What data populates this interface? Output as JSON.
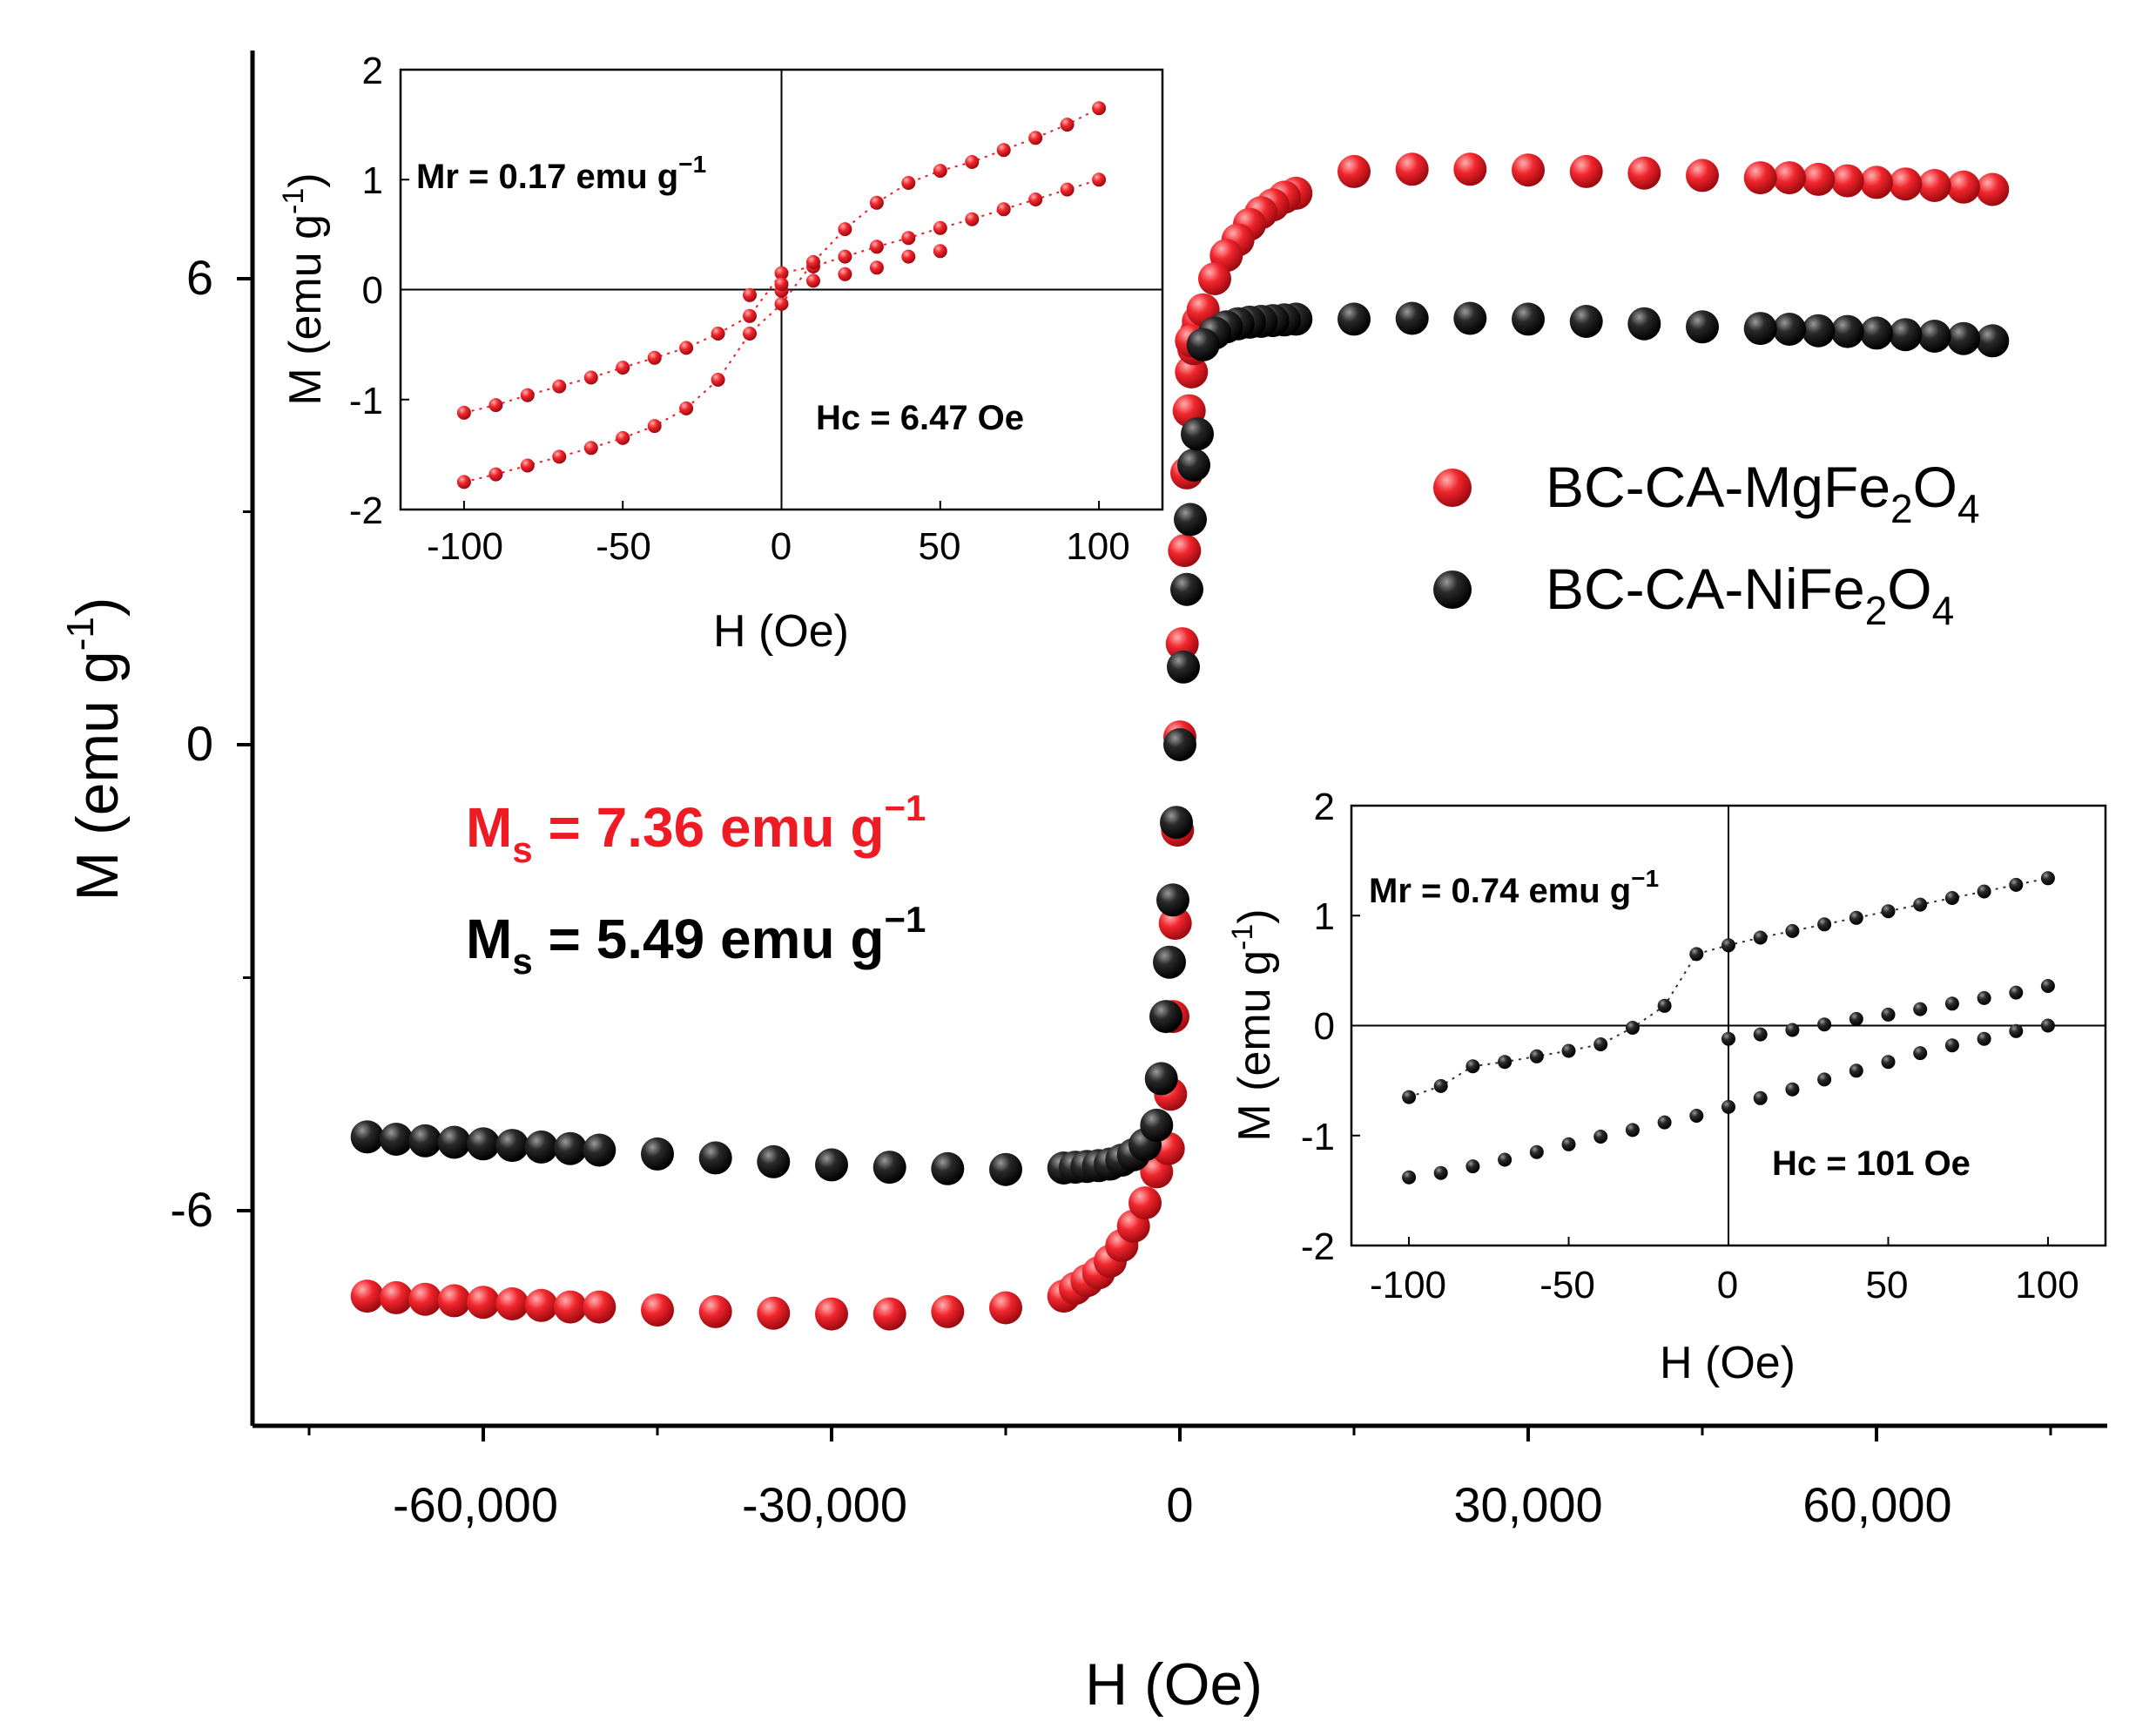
{
  "chart_data": [
    {
      "id": "main",
      "type": "scatter",
      "xlabel": "H (Oe)",
      "ylabel": "M (emu g⁻¹)",
      "ylabel_main": "M (emu g",
      "ylabel_sup": "-1",
      "ylabel_close": ")",
      "xlim": [
        -80000,
        80000
      ],
      "ylim": [
        -8.8,
        9.4
      ],
      "x_ticks": [
        -60000,
        -30000,
        0,
        30000,
        60000
      ],
      "x_tick_labels": [
        "-60,000",
        "-30,000",
        "0",
        "30,000",
        "60,000"
      ],
      "y_ticks": [
        -6,
        0,
        6
      ],
      "y_tick_labels": [
        "-6",
        "0",
        "6"
      ],
      "annotations": [
        {
          "prefix": "M",
          "sub": "s",
          "text": " = 7.36 emu g",
          "sup": "−1",
          "color": "#ee1b24"
        },
        {
          "prefix": "M",
          "sub": "s",
          "text": " = 5.49 emu g",
          "sup": "−1",
          "color": "#000000"
        }
      ],
      "legend": {
        "placement": "right",
        "entries": [
          {
            "name": "BC-CA-MgFe",
            "sub1": "2",
            "mid": "O",
            "sub2": "4",
            "color": "#ee1b24"
          },
          {
            "name": "BC-CA-NiFe",
            "sub1": "2",
            "mid": "O",
            "sub2": "4",
            "color": "#111111"
          }
        ]
      },
      "series": [
        {
          "name": "BC-CA-MgFe2O4",
          "color": "#ee1b24",
          "upper_x": [
            70000,
            67500,
            65000,
            62500,
            60000,
            57500,
            55000,
            52500,
            50000,
            45000,
            40000,
            35000,
            30000,
            25000,
            20000,
            15000,
            10000,
            9000,
            8000,
            7000,
            6000,
            5000,
            4000,
            3000,
            2000,
            1000
          ],
          "upper_y": [
            7.15,
            7.18,
            7.2,
            7.22,
            7.24,
            7.26,
            7.28,
            7.3,
            7.3,
            7.33,
            7.36,
            7.38,
            7.4,
            7.41,
            7.41,
            7.38,
            7.1,
            7.05,
            6.95,
            6.85,
            6.7,
            6.5,
            6.3,
            6.0,
            5.6,
            5.2
          ],
          "lower_x": [
            -70000,
            -67500,
            -65000,
            -62500,
            -60000,
            -57500,
            -55000,
            -52500,
            -50000,
            -45000,
            -40000,
            -35000,
            -30000,
            -25000,
            -20000,
            -15000,
            -10000,
            -9000,
            -8000,
            -7000,
            -6000,
            -5000,
            -4000,
            -3000,
            -2000
          ],
          "lower_y": [
            -7.1,
            -7.12,
            -7.14,
            -7.16,
            -7.18,
            -7.2,
            -7.22,
            -7.24,
            -7.24,
            -7.28,
            -7.3,
            -7.32,
            -7.33,
            -7.33,
            -7.3,
            -7.25,
            -7.1,
            -7.0,
            -6.9,
            -6.8,
            -6.65,
            -6.45,
            -6.2,
            -5.9,
            -5.5
          ],
          "branch_x": [
            -1000,
            -800,
            -600,
            -400,
            -200,
            0,
            200,
            400,
            600,
            800,
            1000,
            1200,
            1400,
            1600
          ],
          "branch_y": [
            -5.2,
            -4.5,
            -3.5,
            -2.3,
            -1.1,
            0.1,
            1.3,
            2.5,
            3.5,
            4.3,
            4.8,
            5.1,
            5.3,
            5.45
          ]
        },
        {
          "name": "BC-CA-NiFe2O4",
          "color": "#111111",
          "upper_x": [
            70000,
            67500,
            65000,
            62500,
            60000,
            57500,
            55000,
            52500,
            50000,
            45000,
            40000,
            35000,
            30000,
            25000,
            20000,
            15000,
            10000,
            9000,
            8000,
            7000,
            6000,
            5000,
            4000,
            3000,
            2000
          ],
          "upper_y": [
            5.2,
            5.23,
            5.26,
            5.28,
            5.3,
            5.32,
            5.33,
            5.35,
            5.36,
            5.38,
            5.42,
            5.45,
            5.48,
            5.49,
            5.49,
            5.48,
            5.48,
            5.47,
            5.46,
            5.45,
            5.44,
            5.42,
            5.38,
            5.3,
            5.15
          ],
          "lower_x": [
            -70000,
            -67500,
            -65000,
            -62500,
            -60000,
            -57500,
            -55000,
            -52500,
            -50000,
            -45000,
            -40000,
            -35000,
            -30000,
            -25000,
            -20000,
            -15000,
            -10000,
            -9000,
            -8000,
            -7000,
            -6000,
            -5000,
            -4000,
            -3000
          ],
          "lower_y": [
            -5.05,
            -5.08,
            -5.1,
            -5.12,
            -5.14,
            -5.16,
            -5.18,
            -5.2,
            -5.22,
            -5.27,
            -5.32,
            -5.37,
            -5.41,
            -5.44,
            -5.46,
            -5.47,
            -5.45,
            -5.44,
            -5.43,
            -5.42,
            -5.4,
            -5.35,
            -5.28,
            -5.15
          ],
          "branch_x": [
            -2000,
            -1600,
            -1200,
            -900,
            -600,
            -300,
            0,
            300,
            600,
            900,
            1200,
            1500
          ],
          "branch_y": [
            -4.9,
            -4.3,
            -3.5,
            -2.8,
            -2.0,
            -1.0,
            0.0,
            1.0,
            2.0,
            2.9,
            3.6,
            4.0
          ]
        }
      ]
    },
    {
      "id": "inset-mg",
      "type": "scatter",
      "xlabel": "H (Oe)",
      "ylabel_main": "M (emu g",
      "ylabel_sup": "-1",
      "ylabel_close": ")",
      "xlim": [
        -120,
        120
      ],
      "ylim": [
        -2,
        2
      ],
      "x_ticks": [
        -100,
        -50,
        0,
        50,
        100
      ],
      "x_tick_labels": [
        "-100",
        "-50",
        "0",
        "50",
        "100"
      ],
      "y_ticks": [
        -2,
        -1,
        0,
        1,
        2
      ],
      "y_tick_labels": [
        "-2",
        "-1",
        "0",
        "1",
        "2"
      ],
      "note_mr": "Mr = 0.17 emu g",
      "note_mr_sup": "−1",
      "note_hc": "Hc = 6.47 Oe",
      "color": "#ee1b24",
      "points": [
        [
          -100,
          -1.12
        ],
        [
          -90,
          -1.05
        ],
        [
          -80,
          -0.96
        ],
        [
          -70,
          -0.88
        ],
        [
          -60,
          -0.8
        ],
        [
          -50,
          -0.71
        ],
        [
          -40,
          -0.62
        ],
        [
          -30,
          -0.53
        ],
        [
          -20,
          -0.4
        ],
        [
          -10,
          -0.24
        ],
        [
          0,
          0.15
        ],
        [
          10,
          0.21
        ],
        [
          20,
          0.3
        ],
        [
          30,
          0.39
        ],
        [
          40,
          0.47
        ],
        [
          50,
          0.56
        ],
        [
          60,
          0.64
        ],
        [
          70,
          0.73
        ],
        [
          80,
          0.82
        ],
        [
          90,
          0.91
        ],
        [
          100,
          1.0
        ],
        [
          -100,
          -1.75
        ],
        [
          -90,
          -1.68
        ],
        [
          -80,
          -1.6
        ],
        [
          -70,
          -1.52
        ],
        [
          -60,
          -1.44
        ],
        [
          -50,
          -1.35
        ],
        [
          -40,
          -1.24
        ],
        [
          -30,
          -1.08
        ],
        [
          -20,
          -0.82
        ],
        [
          -10,
          -0.4
        ],
        [
          0,
          -0.13
        ],
        [
          10,
          0.25
        ],
        [
          20,
          0.55
        ],
        [
          30,
          0.79
        ],
        [
          40,
          0.97
        ],
        [
          50,
          1.08
        ],
        [
          60,
          1.16
        ],
        [
          70,
          1.27
        ],
        [
          80,
          1.38
        ],
        [
          90,
          1.5
        ],
        [
          100,
          1.65
        ],
        [
          -10,
          -0.05
        ],
        [
          0,
          -0.01
        ],
        [
          0,
          0.05
        ],
        [
          10,
          0.08
        ],
        [
          20,
          0.14
        ],
        [
          30,
          0.2
        ],
        [
          40,
          0.3
        ],
        [
          50,
          0.35
        ]
      ]
    },
    {
      "id": "inset-ni",
      "type": "scatter",
      "xlabel": "H (Oe)",
      "ylabel_main": "M (emu g",
      "ylabel_sup": "-1",
      "ylabel_close": ")",
      "xlim": [
        -118,
        118
      ],
      "ylim": [
        -2,
        2
      ],
      "x_ticks": [
        -100,
        -50,
        0,
        50,
        100
      ],
      "x_tick_labels": [
        "-100",
        "-50",
        "0",
        "50",
        "100"
      ],
      "y_ticks": [
        -2,
        -1,
        0,
        1,
        2
      ],
      "y_tick_labels": [
        "-2",
        "-1",
        "0",
        "1",
        "2"
      ],
      "note_mr": "Mr = 0.74 emu g",
      "note_mr_sup": "−1",
      "note_hc": "Hc = 101 Oe",
      "color": "#111111",
      "points": [
        [
          -100,
          -0.65
        ],
        [
          -90,
          -0.55
        ],
        [
          -80,
          -0.37
        ],
        [
          -70,
          -0.33
        ],
        [
          -60,
          -0.28
        ],
        [
          -50,
          -0.23
        ],
        [
          -40,
          -0.17
        ],
        [
          -30,
          -0.02
        ],
        [
          -20,
          0.18
        ],
        [
          -10,
          0.65
        ],
        [
          0,
          0.73
        ],
        [
          10,
          0.8
        ],
        [
          20,
          0.86
        ],
        [
          30,
          0.92
        ],
        [
          40,
          0.98
        ],
        [
          50,
          1.04
        ],
        [
          60,
          1.1
        ],
        [
          70,
          1.16
        ],
        [
          80,
          1.22
        ],
        [
          90,
          1.28
        ],
        [
          100,
          1.34
        ],
        [
          0,
          -0.12
        ],
        [
          10,
          -0.08
        ],
        [
          20,
          -0.04
        ],
        [
          30,
          0.01
        ],
        [
          40,
          0.06
        ],
        [
          50,
          0.1
        ],
        [
          60,
          0.15
        ],
        [
          70,
          0.2
        ],
        [
          80,
          0.25
        ],
        [
          90,
          0.3
        ],
        [
          100,
          0.36
        ],
        [
          -100,
          -1.38
        ],
        [
          -90,
          -1.34
        ],
        [
          -80,
          -1.28
        ],
        [
          -70,
          -1.22
        ],
        [
          -60,
          -1.15
        ],
        [
          -50,
          -1.08
        ],
        [
          -40,
          -1.01
        ],
        [
          -30,
          -0.95
        ],
        [
          -20,
          -0.88
        ],
        [
          -10,
          -0.82
        ],
        [
          0,
          -0.74
        ],
        [
          10,
          -0.66
        ],
        [
          20,
          -0.58
        ],
        [
          30,
          -0.49
        ],
        [
          40,
          -0.41
        ],
        [
          50,
          -0.33
        ],
        [
          60,
          -0.25
        ],
        [
          70,
          -0.18
        ],
        [
          80,
          -0.12
        ],
        [
          90,
          -0.05
        ],
        [
          100,
          0.0
        ]
      ]
    }
  ]
}
